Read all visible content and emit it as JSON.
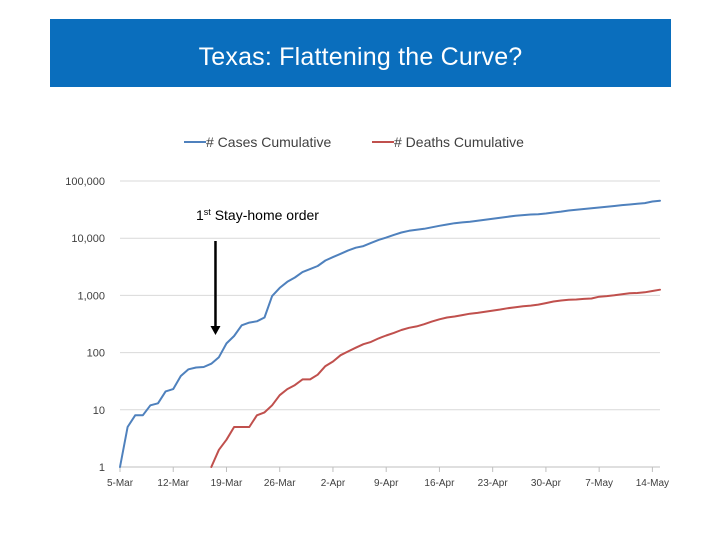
{
  "slide": {
    "title": "Texas: Flattening the Curve?",
    "title_bar_color": "#0a6ebd"
  },
  "chart_data": {
    "type": "line",
    "title": "",
    "xlabel": "",
    "ylabel": "",
    "y_scale": "log",
    "ylim": [
      1,
      100000
    ],
    "yticks": [
      1,
      10,
      100,
      1000,
      10000,
      100000
    ],
    "ytick_labels": [
      "1",
      "10",
      "100",
      "1,000",
      "10,000",
      "100,000"
    ],
    "xlim": [
      "2020-03-05",
      "2020-05-15"
    ],
    "xticks": [
      "2020-03-05",
      "2020-03-12",
      "2020-03-19",
      "2020-03-26",
      "2020-04-02",
      "2020-04-09",
      "2020-04-16",
      "2020-04-23",
      "2020-04-30",
      "2020-05-07",
      "2020-05-14"
    ],
    "xtick_labels": [
      "5-Mar",
      "12-Mar",
      "19-Mar",
      "26-Mar",
      "2-Apr",
      "9-Apr",
      "16-Apr",
      "23-Apr",
      "30-Apr",
      "7-May",
      "14-May"
    ],
    "grid": "horizontal",
    "legend_position": "top",
    "series": [
      {
        "name": "# Cases Cumulative",
        "color": "#4f81bd",
        "points": [
          [
            "2020-03-05",
            1
          ],
          [
            "2020-03-06",
            5
          ],
          [
            "2020-03-07",
            8
          ],
          [
            "2020-03-08",
            8
          ],
          [
            "2020-03-09",
            12
          ],
          [
            "2020-03-10",
            13
          ],
          [
            "2020-03-11",
            21
          ],
          [
            "2020-03-12",
            23
          ],
          [
            "2020-03-13",
            39
          ],
          [
            "2020-03-14",
            51
          ],
          [
            "2020-03-15",
            55
          ],
          [
            "2020-03-16",
            56
          ],
          [
            "2020-03-17",
            64
          ],
          [
            "2020-03-18",
            83
          ],
          [
            "2020-03-19",
            145
          ],
          [
            "2020-03-20",
            195
          ],
          [
            "2020-03-21",
            300
          ],
          [
            "2020-03-22",
            334
          ],
          [
            "2020-03-23",
            352
          ],
          [
            "2020-03-24",
            410
          ],
          [
            "2020-03-25",
            974
          ],
          [
            "2020-03-26",
            1353
          ],
          [
            "2020-03-27",
            1731
          ],
          [
            "2020-03-28",
            2052
          ],
          [
            "2020-03-29",
            2552
          ],
          [
            "2020-03-30",
            2877
          ],
          [
            "2020-03-31",
            3266
          ],
          [
            "2020-04-01",
            4068
          ],
          [
            "2020-04-02",
            4669
          ],
          [
            "2020-04-03",
            5330
          ],
          [
            "2020-04-04",
            6110
          ],
          [
            "2020-04-05",
            6812
          ],
          [
            "2020-04-06",
            7276
          ],
          [
            "2020-04-07",
            8262
          ],
          [
            "2020-04-08",
            9353
          ],
          [
            "2020-04-09",
            10230
          ],
          [
            "2020-04-10",
            11425
          ],
          [
            "2020-04-11",
            12561
          ],
          [
            "2020-04-12",
            13484
          ],
          [
            "2020-04-13",
            14087
          ],
          [
            "2020-04-14",
            14624
          ],
          [
            "2020-04-15",
            15492
          ],
          [
            "2020-04-16",
            16455
          ],
          [
            "2020-04-17",
            17371
          ],
          [
            "2020-04-18",
            18260
          ],
          [
            "2020-04-19",
            18923
          ],
          [
            "2020-04-20",
            19458
          ],
          [
            "2020-04-21",
            20196
          ],
          [
            "2020-04-22",
            21069
          ],
          [
            "2020-04-23",
            21944
          ],
          [
            "2020-04-24",
            22806
          ],
          [
            "2020-04-25",
            23773
          ],
          [
            "2020-04-26",
            24631
          ],
          [
            "2020-04-27",
            25297
          ],
          [
            "2020-04-28",
            25962
          ],
          [
            "2020-04-29",
            26171
          ],
          [
            "2020-04-30",
            27054
          ],
          [
            "2020-05-01",
            28087
          ],
          [
            "2020-05-02",
            29229
          ],
          [
            "2020-05-03",
            30522
          ],
          [
            "2020-05-04",
            31548
          ],
          [
            "2020-05-05",
            32332
          ],
          [
            "2020-05-06",
            33369
          ],
          [
            "2020-05-07",
            34422
          ],
          [
            "2020-05-08",
            35390
          ],
          [
            "2020-05-09",
            36609
          ],
          [
            "2020-05-10",
            37860
          ],
          [
            "2020-05-11",
            38869
          ],
          [
            "2020-05-12",
            39869
          ],
          [
            "2020-05-13",
            41048
          ],
          [
            "2020-05-14",
            43851
          ],
          [
            "2020-05-15",
            45198
          ]
        ]
      },
      {
        "name": "# Deaths Cumulative",
        "color": "#c0504d",
        "points": [
          [
            "2020-03-17",
            1
          ],
          [
            "2020-03-18",
            2
          ],
          [
            "2020-03-19",
            3
          ],
          [
            "2020-03-20",
            5
          ],
          [
            "2020-03-21",
            5
          ],
          [
            "2020-03-22",
            5
          ],
          [
            "2020-03-23",
            8
          ],
          [
            "2020-03-24",
            9
          ],
          [
            "2020-03-25",
            12
          ],
          [
            "2020-03-26",
            18
          ],
          [
            "2020-03-27",
            23
          ],
          [
            "2020-03-28",
            27
          ],
          [
            "2020-03-29",
            34
          ],
          [
            "2020-03-30",
            34
          ],
          [
            "2020-03-31",
            41
          ],
          [
            "2020-04-01",
            58
          ],
          [
            "2020-04-02",
            70
          ],
          [
            "2020-04-03",
            90
          ],
          [
            "2020-04-04",
            105
          ],
          [
            "2020-04-05",
            122
          ],
          [
            "2020-04-06",
            140
          ],
          [
            "2020-04-07",
            154
          ],
          [
            "2020-04-08",
            177
          ],
          [
            "2020-04-09",
            199
          ],
          [
            "2020-04-10",
            221
          ],
          [
            "2020-04-11",
            248
          ],
          [
            "2020-04-12",
            271
          ],
          [
            "2020-04-13",
            287
          ],
          [
            "2020-04-14",
            314
          ],
          [
            "2020-04-15",
            348
          ],
          [
            "2020-04-16",
            382
          ],
          [
            "2020-04-17",
            411
          ],
          [
            "2020-04-18",
            428
          ],
          [
            "2020-04-19",
            453
          ],
          [
            "2020-04-20",
            478
          ],
          [
            "2020-04-21",
            495
          ],
          [
            "2020-04-22",
            517
          ],
          [
            "2020-04-23",
            543
          ],
          [
            "2020-04-24",
            567
          ],
          [
            "2020-04-25",
            597
          ],
          [
            "2020-04-26",
            623
          ],
          [
            "2020-04-27",
            648
          ],
          [
            "2020-04-28",
            663
          ],
          [
            "2020-04-29",
            690
          ],
          [
            "2020-04-30",
            732
          ],
          [
            "2020-05-01",
            782
          ],
          [
            "2020-05-02",
            816
          ],
          [
            "2020-05-03",
            840
          ],
          [
            "2020-05-04",
            847
          ],
          [
            "2020-05-05",
            867
          ],
          [
            "2020-05-06",
            884
          ],
          [
            "2020-05-07",
            948
          ],
          [
            "2020-05-08",
            973
          ],
          [
            "2020-05-09",
            1004
          ],
          [
            "2020-05-10",
            1049
          ],
          [
            "2020-05-11",
            1088
          ],
          [
            "2020-05-12",
            1100
          ],
          [
            "2020-05-13",
            1133
          ],
          [
            "2020-05-14",
            1193
          ],
          [
            "2020-05-15",
            1257
          ]
        ]
      }
    ],
    "annotations": [
      {
        "text": "1",
        "superscript": "st",
        "text_rest": " Stay-home order",
        "x": "2020-03-19",
        "arrow_from_value": 10000,
        "arrow_to_value": 200
      }
    ]
  }
}
